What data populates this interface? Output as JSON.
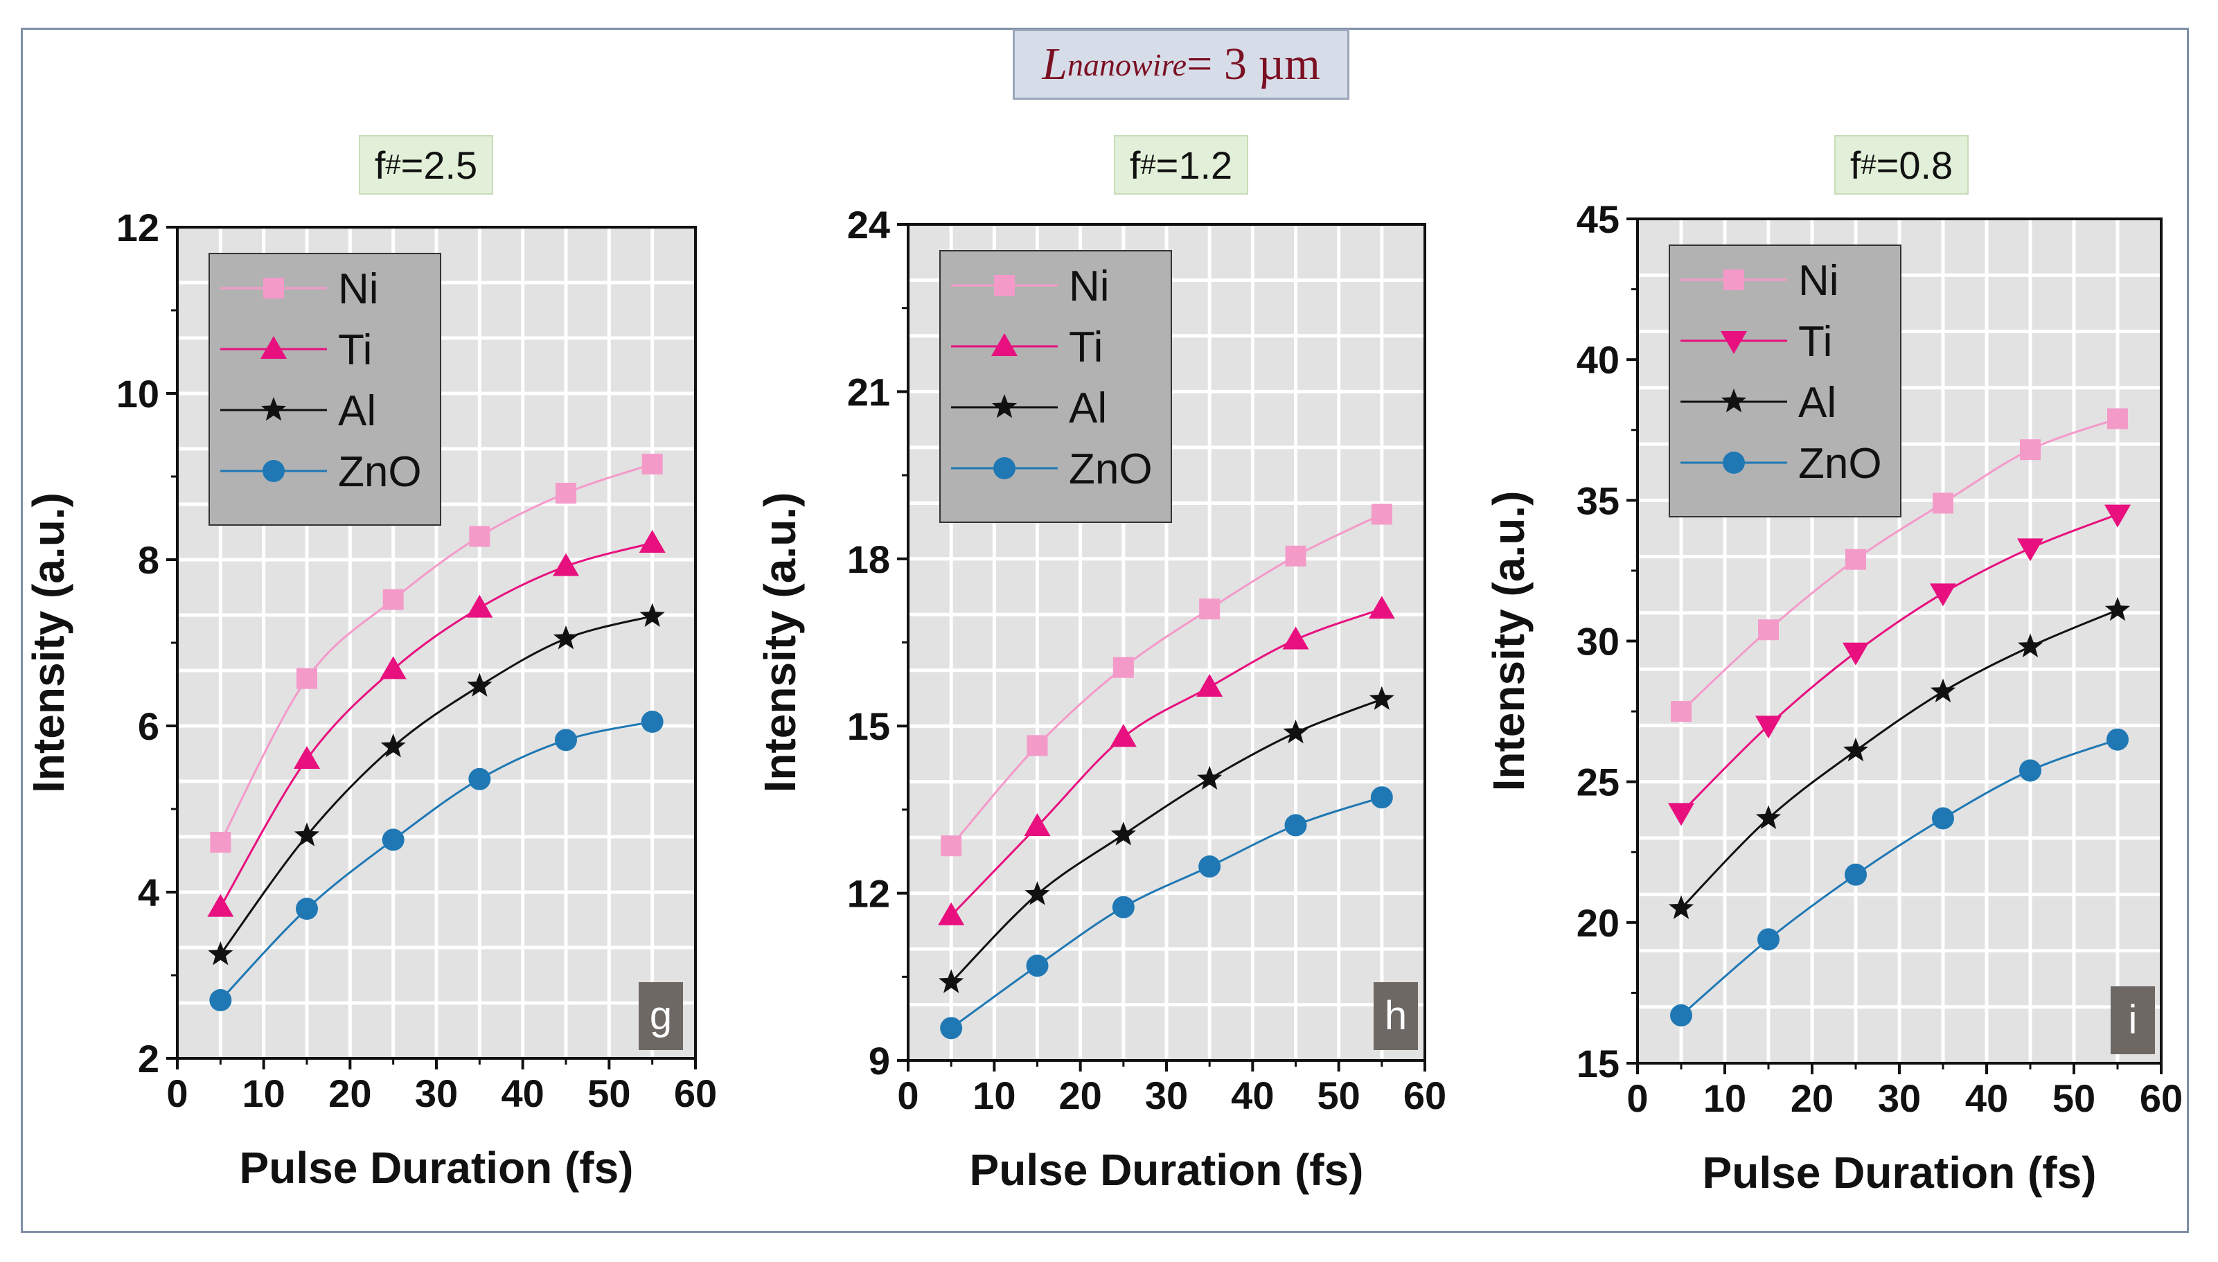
{
  "figure": {
    "title_symbol": "L",
    "title_subscript": "nanowire",
    "title_rest": " = 3 µm"
  },
  "panels": [
    {
      "tag_prefix": "f",
      "tag_subscript": "#",
      "tag_value": "=2.5",
      "letter": "g"
    },
    {
      "tag_prefix": "f",
      "tag_subscript": "#",
      "tag_value": "=1.2",
      "letter": "h"
    },
    {
      "tag_prefix": "f",
      "tag_subscript": "#",
      "tag_value": "=0.8",
      "letter": "i"
    }
  ],
  "colors": {
    "Ni": "#f49ac9",
    "Ti": "#e8107f",
    "Al": "#111111",
    "ZnO": "#1f78b4",
    "plot_bg": "#e2e2e2",
    "legend_bg": "#b2b2b2",
    "letter_bg": "#6e6865"
  },
  "chart_data": [
    {
      "type": "line",
      "title": "f#=2.5",
      "xlabel": "Pulse Duration (fs)",
      "ylabel": "Intensity (a.u.)",
      "xlim": [
        0,
        60
      ],
      "ylim": [
        2,
        12
      ],
      "xticks": [
        0,
        10,
        20,
        30,
        40,
        50,
        60
      ],
      "yticks": [
        2,
        4,
        6,
        8,
        10,
        12
      ],
      "x": [
        5,
        15,
        25,
        35,
        45,
        55
      ],
      "legend_position": "top-left",
      "series": [
        {
          "name": "Ni",
          "marker": "square",
          "values": [
            4.6,
            6.57,
            7.52,
            8.28,
            8.8,
            9.15
          ]
        },
        {
          "name": "Ti",
          "marker": "triangle-up",
          "values": [
            3.82,
            5.6,
            6.68,
            7.42,
            7.92,
            8.2
          ]
        },
        {
          "name": "Al",
          "marker": "star",
          "values": [
            3.25,
            4.68,
            5.75,
            6.48,
            7.05,
            7.32
          ]
        },
        {
          "name": "ZnO",
          "marker": "circle",
          "values": [
            2.7,
            3.8,
            4.63,
            5.36,
            5.83,
            6.05
          ]
        }
      ]
    },
    {
      "type": "line",
      "title": "f#=1.2",
      "xlabel": "Pulse Duration (fs)",
      "ylabel": "Intensity (a.u.)",
      "xlim": [
        0,
        60
      ],
      "ylim": [
        9,
        24
      ],
      "xticks": [
        0,
        10,
        20,
        30,
        40,
        50,
        60
      ],
      "yticks": [
        9,
        12,
        15,
        18,
        21,
        24
      ],
      "x": [
        5,
        15,
        25,
        35,
        45,
        55
      ],
      "legend_position": "top-left",
      "series": [
        {
          "name": "Ni",
          "marker": "square",
          "values": [
            12.85,
            14.65,
            16.05,
            17.1,
            18.05,
            18.8
          ]
        },
        {
          "name": "Ti",
          "marker": "triangle-up",
          "values": [
            11.6,
            13.2,
            14.8,
            15.7,
            16.55,
            17.1
          ]
        },
        {
          "name": "Al",
          "marker": "star",
          "values": [
            10.4,
            11.98,
            13.05,
            14.05,
            14.88,
            15.48
          ]
        },
        {
          "name": "ZnO",
          "marker": "circle",
          "values": [
            9.58,
            10.7,
            11.75,
            12.48,
            13.22,
            13.72
          ]
        }
      ]
    },
    {
      "type": "line",
      "title": "f#=0.8",
      "xlabel": "Pulse Duration (fs)",
      "ylabel": "Intensity (a.u.)",
      "xlim": [
        0,
        60
      ],
      "ylim": [
        15,
        45
      ],
      "xticks": [
        0,
        10,
        20,
        30,
        40,
        50,
        60
      ],
      "yticks": [
        15,
        20,
        25,
        30,
        35,
        40,
        45
      ],
      "x": [
        5,
        15,
        25,
        35,
        45,
        55
      ],
      "legend_position": "top-left",
      "series": [
        {
          "name": "Ni",
          "marker": "square",
          "values": [
            27.5,
            30.4,
            32.9,
            34.9,
            36.8,
            37.9
          ]
        },
        {
          "name": "Ti",
          "marker": "triangle-down",
          "values": [
            23.9,
            27.0,
            29.6,
            31.7,
            33.3,
            34.5
          ]
        },
        {
          "name": "Al",
          "marker": "star",
          "values": [
            20.5,
            23.7,
            26.1,
            28.2,
            29.8,
            31.1
          ]
        },
        {
          "name": "ZnO",
          "marker": "circle",
          "values": [
            16.7,
            19.4,
            21.7,
            23.7,
            25.4,
            26.5
          ]
        }
      ]
    }
  ]
}
